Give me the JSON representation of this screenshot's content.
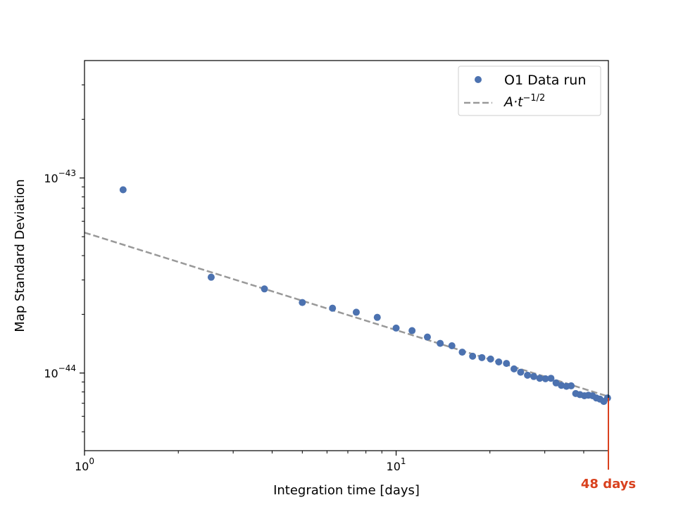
{
  "chart_data": {
    "type": "scatter",
    "xscale": "log",
    "yscale": "log",
    "xlim": [
      1,
      48
    ],
    "ylim": [
      4e-45,
      4e-43
    ],
    "xlabel": "Integration time [days]",
    "ylabel": "Map Standard Deviation",
    "x_ticks": [
      {
        "value": 1,
        "base": "10",
        "exp": "0"
      },
      {
        "value": 10,
        "base": "10",
        "exp": "1"
      }
    ],
    "y_ticks": [
      {
        "value": 1e-43,
        "base": "10",
        "exp": "−43"
      },
      {
        "value": 1e-44,
        "base": "10",
        "exp": "−44"
      }
    ],
    "legend_position": "top-right",
    "series": [
      {
        "name": "O1 Data run",
        "kind": "points",
        "color": "#4c72b0",
        "x": [
          1.33,
          2.55,
          3.78,
          5.0,
          6.25,
          7.45,
          8.7,
          10.0,
          11.25,
          12.6,
          13.85,
          15.1,
          16.3,
          17.6,
          18.85,
          20.1,
          21.35,
          22.6,
          23.9,
          25.1,
          26.4,
          27.65,
          28.9,
          30.15,
          31.4,
          32.6,
          33.9,
          35.2,
          36.45,
          37.7,
          38.9,
          40.2,
          41.4,
          42.7,
          43.9,
          45.1,
          46.4,
          47.7
        ],
        "y": [
          8.7e-44,
          3.1e-44,
          2.7e-44,
          2.3e-44,
          2.15e-44,
          2.05e-44,
          1.93e-44,
          1.7e-44,
          1.65e-44,
          1.53e-44,
          1.42e-44,
          1.38e-44,
          1.28e-44,
          1.22e-44,
          1.2e-44,
          1.18e-44,
          1.14e-44,
          1.12e-44,
          1.05e-44,
          1.01e-44,
          9.75e-45,
          9.6e-45,
          9.4e-45,
          9.35e-45,
          9.4e-45,
          8.9e-45,
          8.65e-45,
          8.55e-45,
          8.6e-45,
          7.85e-45,
          7.75e-45,
          7.65e-45,
          7.7e-45,
          7.65e-45,
          7.45e-45,
          7.35e-45,
          7.15e-45,
          7.45e-45
        ]
      },
      {
        "name": "A·t",
        "name_sup": "−1/2",
        "kind": "line",
        "color": "#999999",
        "dash": "dashed",
        "x": [
          1,
          48
        ],
        "y": [
          5.25e-44,
          7.58e-45
        ]
      }
    ],
    "annotation": {
      "text": "48 days",
      "x": 48,
      "color": "#d9411e"
    }
  }
}
